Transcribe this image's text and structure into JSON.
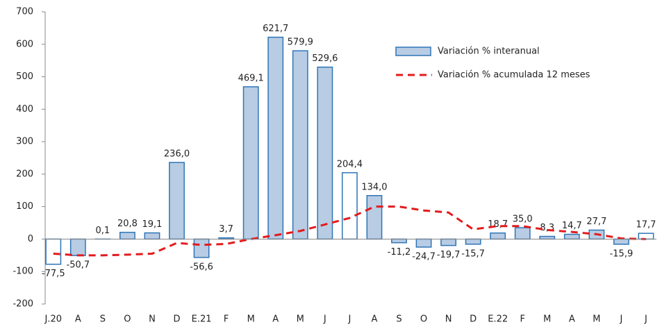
{
  "chart_data": {
    "type": "bar",
    "categories": [
      "J.20",
      "A",
      "S",
      "O",
      "N",
      "D",
      "E.21",
      "F",
      "M",
      "A",
      "M",
      "J",
      "J",
      "A",
      "S",
      "O",
      "N",
      "D",
      "E.22",
      "F",
      "M",
      "A",
      "M",
      "J",
      "J"
    ],
    "series": [
      {
        "name": "Variación % interanual",
        "type": "bar",
        "color": "#b8cce4",
        "edge_color": "#2e75b6",
        "bar_fills": [
          "#ffffff",
          "#b8cce4",
          "#b8cce4",
          "#b8cce4",
          "#b8cce4",
          "#b8cce4",
          "#b8cce4",
          "#b8cce4",
          "#b8cce4",
          "#b8cce4",
          "#b8cce4",
          "#b8cce4",
          "#ffffff",
          "#b8cce4",
          "#b8cce4",
          "#b8cce4",
          "#b8cce4",
          "#b8cce4",
          "#b8cce4",
          "#b8cce4",
          "#b8cce4",
          "#b8cce4",
          "#b8cce4",
          "#b8cce4",
          "#ffffff"
        ],
        "values": [
          -77.5,
          -50.7,
          0.1,
          20.8,
          19.1,
          236.0,
          -56.6,
          3.7,
          469.1,
          621.7,
          579.9,
          529.6,
          204.4,
          134.0,
          -11.2,
          -24.7,
          -19.7,
          -15.7,
          18.7,
          35.0,
          8.3,
          14.7,
          27.7,
          -15.9,
          17.7
        ],
        "value_labels": [
          "-77,5",
          "-50,7",
          "0,1",
          "20,8",
          "19,1",
          "236,0",
          "-56,6",
          "3,7",
          "469,1",
          "621,7",
          "579,9",
          "529,6",
          "204,4",
          "134,0",
          "-11,2",
          "-24,7",
          "-19,7",
          "-15,7",
          "18,7",
          "35,0",
          "8,3",
          "14,7",
          "27,7",
          "-15,9",
          "17,7"
        ]
      },
      {
        "name": "Variación % acumulada 12 meses",
        "type": "line",
        "color": "#e31a1c",
        "dashed": true,
        "values": [
          -45,
          -50,
          -50,
          -48,
          -45,
          -12,
          -18,
          -15,
          0,
          12,
          25,
          45,
          65,
          100,
          100,
          88,
          82,
          30,
          40,
          40,
          28,
          22,
          15,
          2,
          0
        ]
      }
    ],
    "ylim": [
      -200,
      700
    ],
    "yticks": [
      -200,
      -100,
      0,
      100,
      200,
      300,
      400,
      500,
      600,
      700
    ],
    "grid": false,
    "legend": "upper-right"
  }
}
